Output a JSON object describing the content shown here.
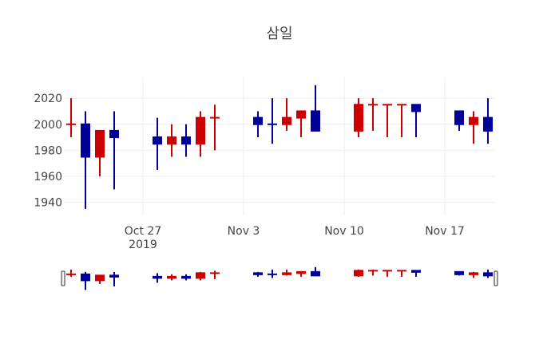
{
  "chart_data": {
    "type": "candlestick",
    "title": "삼일",
    "xlabel": "",
    "ylabel": "",
    "ylim": [
      1930,
      2036
    ],
    "xlim": [
      "2019-10-21T12:00",
      "2019-11-20T12:00"
    ],
    "grid": true,
    "legend": "none",
    "range_slider": true,
    "increasing_color": "#000099",
    "decreasing_color": "#cc0000",
    "y_ticks": [
      1940,
      1960,
      1980,
      2000,
      2020
    ],
    "x_ticks": [
      {
        "date": "2019-10-27",
        "label": "Oct 27",
        "sublabel": "2019"
      },
      {
        "date": "2019-11-03",
        "label": "Nov 3",
        "sublabel": ""
      },
      {
        "date": "2019-11-10",
        "label": "Nov 10",
        "sublabel": ""
      },
      {
        "date": "2019-11-17",
        "label": "Nov 17",
        "sublabel": ""
      }
    ],
    "candles": [
      {
        "date": "2019-10-22",
        "open": 2000,
        "high": 2020,
        "low": 1990,
        "close": 2000,
        "dir": "down"
      },
      {
        "date": "2019-10-23",
        "open": 1975,
        "high": 2010,
        "low": 1935,
        "close": 2000,
        "dir": "up"
      },
      {
        "date": "2019-10-24",
        "open": 1995,
        "high": 1995,
        "low": 1960,
        "close": 1975,
        "dir": "down"
      },
      {
        "date": "2019-10-25",
        "open": 1990,
        "high": 2010,
        "low": 1950,
        "close": 1995,
        "dir": "up"
      },
      {
        "date": "2019-10-28",
        "open": 1985,
        "high": 2005,
        "low": 1965,
        "close": 1990,
        "dir": "up"
      },
      {
        "date": "2019-10-29",
        "open": 1990,
        "high": 2000,
        "low": 1975,
        "close": 1985,
        "dir": "down"
      },
      {
        "date": "2019-10-30",
        "open": 1985,
        "high": 2000,
        "low": 1975,
        "close": 1990,
        "dir": "up"
      },
      {
        "date": "2019-10-31",
        "open": 2005,
        "high": 2010,
        "low": 1975,
        "close": 1985,
        "dir": "down"
      },
      {
        "date": "2019-11-01",
        "open": 2005,
        "high": 2015,
        "low": 1980,
        "close": 2005,
        "dir": "down"
      },
      {
        "date": "2019-11-04",
        "open": 2000,
        "high": 2010,
        "low": 1990,
        "close": 2005,
        "dir": "up"
      },
      {
        "date": "2019-11-05",
        "open": 2000,
        "high": 2020,
        "low": 1985,
        "close": 2000,
        "dir": "up"
      },
      {
        "date": "2019-11-06",
        "open": 2005,
        "high": 2020,
        "low": 1995,
        "close": 2000,
        "dir": "down"
      },
      {
        "date": "2019-11-07",
        "open": 2010,
        "high": 2010,
        "low": 1990,
        "close": 2005,
        "dir": "down"
      },
      {
        "date": "2019-11-08",
        "open": 1995,
        "high": 2030,
        "low": 1995,
        "close": 2010,
        "dir": "up"
      },
      {
        "date": "2019-11-11",
        "open": 2015,
        "high": 2020,
        "low": 1990,
        "close": 1995,
        "dir": "down"
      },
      {
        "date": "2019-11-12",
        "open": 2015,
        "high": 2020,
        "low": 1995,
        "close": 2015,
        "dir": "down"
      },
      {
        "date": "2019-11-13",
        "open": 2015,
        "high": 2015,
        "low": 1990,
        "close": 2015,
        "dir": "down"
      },
      {
        "date": "2019-11-14",
        "open": 2015,
        "high": 2015,
        "low": 1990,
        "close": 2015,
        "dir": "down"
      },
      {
        "date": "2019-11-15",
        "open": 2010,
        "high": 2015,
        "low": 1990,
        "close": 2015,
        "dir": "up"
      },
      {
        "date": "2019-11-18",
        "open": 2000,
        "high": 2010,
        "low": 1995,
        "close": 2010,
        "dir": "up"
      },
      {
        "date": "2019-11-19",
        "open": 2005,
        "high": 2010,
        "low": 1985,
        "close": 2000,
        "dir": "down"
      },
      {
        "date": "2019-11-20",
        "open": 1995,
        "high": 2020,
        "low": 1985,
        "close": 2005,
        "dir": "up"
      }
    ]
  }
}
